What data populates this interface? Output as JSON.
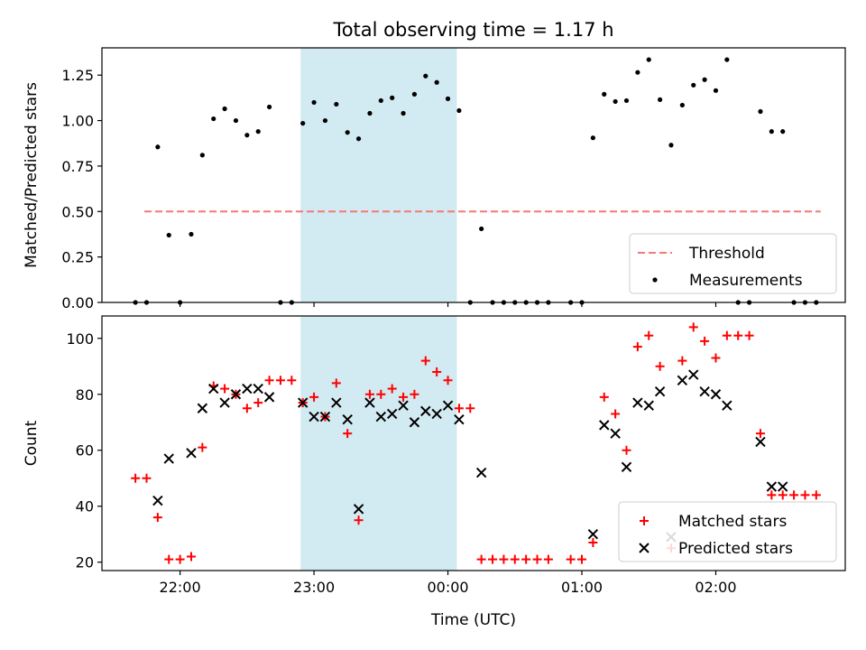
{
  "figure": {
    "title": "Total observing time = 1.17 h",
    "xlabel": "Time (UTC)",
    "colors": {
      "threshold": "#f77777",
      "measurement": "#000000",
      "matched": "#ff0000",
      "predicted": "#000000",
      "shade": "#add8e6"
    }
  },
  "chart_data": [
    {
      "type": "scatter",
      "ylabel": "Matched/Predicted stars",
      "xlim": [
        "21:25",
        "02:58"
      ],
      "ylim": [
        0,
        1.4
      ],
      "yticks": [
        0.0,
        0.25,
        0.5,
        0.75,
        1.0,
        1.25
      ],
      "ytick_labels": [
        "0.00",
        "0.25",
        "0.50",
        "0.75",
        "1.00",
        "1.25"
      ],
      "xticks": [
        "22:00",
        "23:00",
        "00:00",
        "01:00",
        "02:00"
      ],
      "shaded_span": [
        "22:54",
        "00:04"
      ],
      "legend": {
        "placement": "lower right",
        "entries": [
          "Threshold",
          "Measurements"
        ]
      },
      "threshold": {
        "name": "Threshold",
        "x_range": [
          "21:44",
          "02:47"
        ],
        "y": 0.5
      },
      "series": [
        {
          "name": "Measurements",
          "points": [
            [
              "21:40",
              0.0
            ],
            [
              "21:45",
              0.0
            ],
            [
              "21:50",
              0.855
            ],
            [
              "21:55",
              0.37
            ],
            [
              "22:00",
              0.0
            ],
            [
              "22:05",
              0.375
            ],
            [
              "22:10",
              0.81
            ],
            [
              "22:15",
              1.01
            ],
            [
              "22:20",
              1.065
            ],
            [
              "22:25",
              1.0
            ],
            [
              "22:30",
              0.92
            ],
            [
              "22:35",
              0.94
            ],
            [
              "22:40",
              1.075
            ],
            [
              "22:45",
              0.0
            ],
            [
              "22:50",
              0.0
            ],
            [
              "22:55",
              0.985
            ],
            [
              "23:00",
              1.1
            ],
            [
              "23:05",
              1.0
            ],
            [
              "23:10",
              1.09
            ],
            [
              "23:15",
              0.935
            ],
            [
              "23:20",
              0.9
            ],
            [
              "23:25",
              1.04
            ],
            [
              "23:30",
              1.11
            ],
            [
              "23:35",
              1.125
            ],
            [
              "23:40",
              1.04
            ],
            [
              "23:45",
              1.145
            ],
            [
              "23:50",
              1.245
            ],
            [
              "23:55",
              1.21
            ],
            [
              "00:00",
              1.12
            ],
            [
              "00:05",
              1.055
            ],
            [
              "00:10",
              0.0
            ],
            [
              "00:15",
              0.405
            ],
            [
              "00:20",
              0.0
            ],
            [
              "00:25",
              0.0
            ],
            [
              "00:30",
              0.0
            ],
            [
              "00:35",
              0.0
            ],
            [
              "00:40",
              0.0
            ],
            [
              "00:45",
              0.0
            ],
            [
              "00:55",
              0.0
            ],
            [
              "01:00",
              0.0
            ],
            [
              "01:05",
              0.905
            ],
            [
              "01:10",
              1.145
            ],
            [
              "01:15",
              1.105
            ],
            [
              "01:20",
              1.11
            ],
            [
              "01:25",
              1.265
            ],
            [
              "01:30",
              1.335
            ],
            [
              "01:35",
              1.115
            ],
            [
              "01:40",
              0.865
            ],
            [
              "01:45",
              1.085
            ],
            [
              "01:50",
              1.195
            ],
            [
              "01:55",
              1.225
            ],
            [
              "02:00",
              1.165
            ],
            [
              "02:05",
              1.335
            ],
            [
              "02:10",
              0.0
            ],
            [
              "02:15",
              0.0
            ],
            [
              "02:20",
              1.05
            ],
            [
              "02:25",
              0.94
            ],
            [
              "02:30",
              0.94
            ],
            [
              "02:35",
              0.0
            ],
            [
              "02:40",
              0.0
            ],
            [
              "02:45",
              0.0
            ]
          ]
        }
      ]
    },
    {
      "type": "scatter",
      "ylabel": "Count",
      "xlim": [
        "21:25",
        "02:58"
      ],
      "ylim": [
        17,
        108
      ],
      "yticks": [
        20,
        40,
        60,
        80,
        100
      ],
      "ytick_labels": [
        "20",
        "40",
        "60",
        "80",
        "100"
      ],
      "xticks": [
        "22:00",
        "23:00",
        "00:00",
        "01:00",
        "02:00"
      ],
      "shaded_span": [
        "22:54",
        "00:04"
      ],
      "legend": {
        "placement": "lower right",
        "entries": [
          "Matched stars",
          "Predicted stars"
        ]
      },
      "series": [
        {
          "name": "Matched stars",
          "points": [
            [
              "21:40",
              50
            ],
            [
              "21:45",
              50
            ],
            [
              "21:50",
              36
            ],
            [
              "21:55",
              21
            ],
            [
              "22:00",
              21
            ],
            [
              "22:05",
              22
            ],
            [
              "22:10",
              61
            ],
            [
              "22:15",
              83
            ],
            [
              "22:20",
              82
            ],
            [
              "22:25",
              80
            ],
            [
              "22:30",
              75
            ],
            [
              "22:35",
              77
            ],
            [
              "22:40",
              85
            ],
            [
              "22:45",
              85
            ],
            [
              "22:50",
              85
            ],
            [
              "22:55",
              77
            ],
            [
              "23:00",
              79
            ],
            [
              "23:05",
              72
            ],
            [
              "23:10",
              84
            ],
            [
              "23:15",
              66
            ],
            [
              "23:20",
              35
            ],
            [
              "23:25",
              80
            ],
            [
              "23:30",
              80
            ],
            [
              "23:35",
              82
            ],
            [
              "23:40",
              79
            ],
            [
              "23:45",
              80
            ],
            [
              "23:50",
              92
            ],
            [
              "23:55",
              88
            ],
            [
              "00:00",
              85
            ],
            [
              "00:05",
              75
            ],
            [
              "00:10",
              75
            ],
            [
              "00:15",
              21
            ],
            [
              "00:20",
              21
            ],
            [
              "00:25",
              21
            ],
            [
              "00:30",
              21
            ],
            [
              "00:35",
              21
            ],
            [
              "00:40",
              21
            ],
            [
              "00:45",
              21
            ],
            [
              "00:55",
              21
            ],
            [
              "01:00",
              21
            ],
            [
              "01:05",
              27
            ],
            [
              "01:10",
              79
            ],
            [
              "01:15",
              73
            ],
            [
              "01:20",
              60
            ],
            [
              "01:25",
              97
            ],
            [
              "01:30",
              101
            ],
            [
              "01:35",
              90
            ],
            [
              "01:40",
              25
            ],
            [
              "01:45",
              92
            ],
            [
              "01:50",
              104
            ],
            [
              "01:55",
              99
            ],
            [
              "02:00",
              93
            ],
            [
              "02:05",
              101
            ],
            [
              "02:10",
              101
            ],
            [
              "02:15",
              101
            ],
            [
              "02:20",
              66
            ],
            [
              "02:25",
              44
            ],
            [
              "02:30",
              44
            ],
            [
              "02:35",
              44
            ],
            [
              "02:40",
              44
            ],
            [
              "02:45",
              44
            ]
          ]
        },
        {
          "name": "Predicted stars",
          "points": [
            [
              "21:50",
              42
            ],
            [
              "21:55",
              57
            ],
            [
              "22:05",
              59
            ],
            [
              "22:10",
              75
            ],
            [
              "22:15",
              82
            ],
            [
              "22:20",
              77
            ],
            [
              "22:25",
              80
            ],
            [
              "22:30",
              82
            ],
            [
              "22:35",
              82
            ],
            [
              "22:40",
              79
            ],
            [
              "22:55",
              77
            ],
            [
              "23:00",
              72
            ],
            [
              "23:05",
              72
            ],
            [
              "23:10",
              77
            ],
            [
              "23:15",
              71
            ],
            [
              "23:20",
              39
            ],
            [
              "23:25",
              77
            ],
            [
              "23:30",
              72
            ],
            [
              "23:35",
              73
            ],
            [
              "23:40",
              76
            ],
            [
              "23:45",
              70
            ],
            [
              "23:50",
              74
            ],
            [
              "23:55",
              73
            ],
            [
              "00:00",
              76
            ],
            [
              "00:05",
              71
            ],
            [
              "00:15",
              52
            ],
            [
              "01:05",
              30
            ],
            [
              "01:10",
              69
            ],
            [
              "01:15",
              66
            ],
            [
              "01:20",
              54
            ],
            [
              "01:25",
              77
            ],
            [
              "01:30",
              76
            ],
            [
              "01:35",
              81
            ],
            [
              "01:40",
              29
            ],
            [
              "01:45",
              85
            ],
            [
              "01:50",
              87
            ],
            [
              "01:55",
              81
            ],
            [
              "02:00",
              80
            ],
            [
              "02:05",
              76
            ],
            [
              "02:20",
              63
            ],
            [
              "02:25",
              47
            ],
            [
              "02:30",
              47
            ]
          ]
        }
      ]
    }
  ]
}
